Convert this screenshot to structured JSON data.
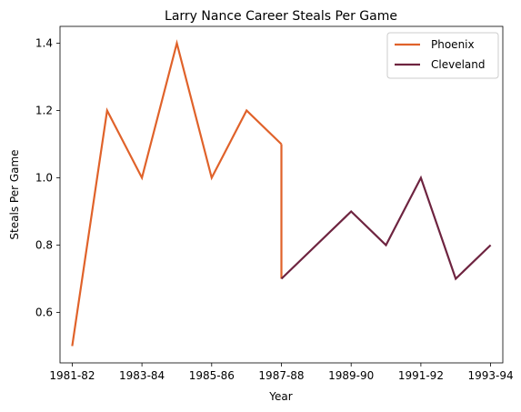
{
  "chart_data": {
    "type": "line",
    "title": "Larry Nance Career Steals Per Game",
    "xlabel": "Year",
    "ylabel": "Steals Per Game",
    "x_ticks": [
      "1981-82",
      "1983-84",
      "1985-86",
      "1987-88",
      "1989-90",
      "1991-92",
      "1993-94"
    ],
    "y_ticks": [
      "0.6",
      "0.8",
      "1.0",
      "1.2",
      "1.4"
    ],
    "ylim": [
      0.45,
      1.45
    ],
    "xlim": [
      -0.35,
      12.35
    ],
    "series": [
      {
        "name": "Phoenix",
        "color": "#e0622a",
        "points": [
          [
            0,
            0.5
          ],
          [
            1,
            1.2
          ],
          [
            2,
            1.0
          ],
          [
            3,
            1.4
          ],
          [
            4,
            1.0
          ],
          [
            5,
            1.2
          ],
          [
            6,
            1.1
          ]
        ]
      },
      {
        "name": "Cleveland",
        "color": "#6e2440",
        "points": [
          [
            6,
            0.7
          ],
          [
            8,
            0.9
          ],
          [
            9,
            0.8
          ],
          [
            10,
            1.0
          ],
          [
            11,
            0.7
          ],
          [
            12,
            0.8
          ]
        ]
      }
    ],
    "connector": {
      "color": "#e0622a",
      "points": [
        [
          6,
          1.1
        ],
        [
          6,
          0.7
        ]
      ]
    },
    "legend": {
      "position": "top-right",
      "entries": [
        "Phoenix",
        "Cleveland"
      ]
    }
  }
}
